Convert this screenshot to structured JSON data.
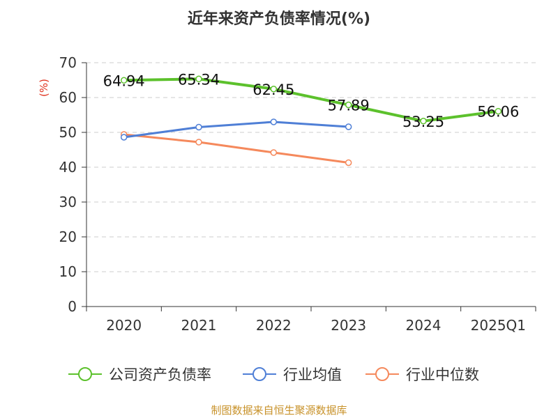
{
  "chart_data": {
    "type": "line",
    "title": "近年来资产负债率情况(%)",
    "ylabel": "(%)",
    "xlabel": "",
    "categories": [
      "2020",
      "2021",
      "2022",
      "2023",
      "2024",
      "2025Q1"
    ],
    "yticks": [
      "0",
      "10",
      "20",
      "30",
      "40",
      "50",
      "60",
      "70"
    ],
    "ylim": [
      0,
      70
    ],
    "grid": true,
    "legend_position": "bottom",
    "series": [
      {
        "name": "公司资产负债率",
        "values": [
          64.94,
          65.34,
          62.45,
          57.89,
          53.25,
          56.06
        ],
        "labels": [
          "64.94",
          "65.34",
          "62.45",
          "57.89",
          "53.25",
          "56.06"
        ],
        "color": "#5cc12c"
      },
      {
        "name": "行业均值",
        "values": [
          48.6,
          51.5,
          53.0,
          51.6,
          null,
          null
        ],
        "color": "#4f7fd6"
      },
      {
        "name": "行业中位数",
        "values": [
          49.4,
          47.2,
          44.2,
          41.3,
          null,
          null
        ],
        "color": "#f5895c"
      }
    ],
    "source": "制图数据来自恒生聚源数据库",
    "colors": {
      "axis": "#333333",
      "grid": "#cccccc",
      "ylabel": "#e0321e",
      "source": "#c8922a"
    }
  }
}
